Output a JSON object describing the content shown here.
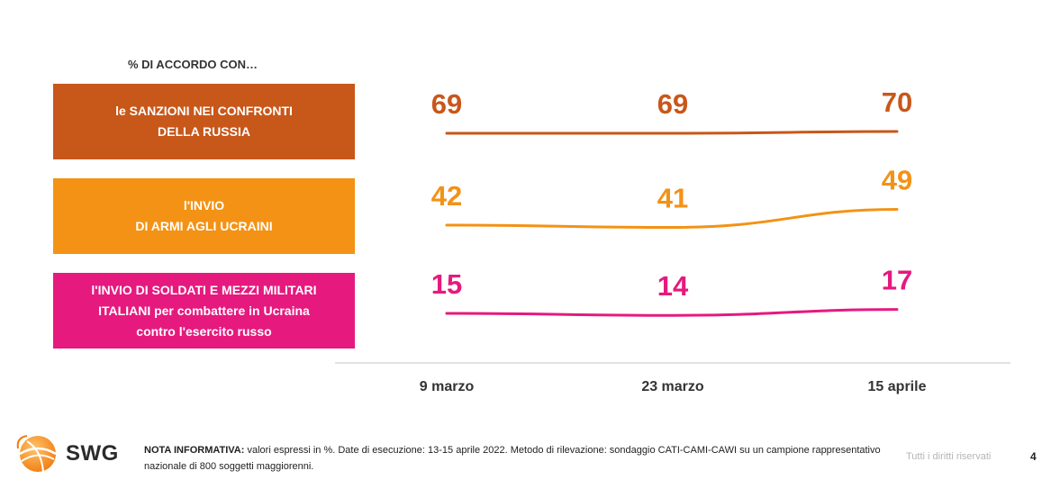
{
  "heading": "% DI ACCORDO CON…",
  "labels": [
    "le SANZIONI NEI CONFRONTI\nDELLA RUSSIA",
    "l'INVIO\nDI ARMI AGLI UCRAINI",
    "l'INVIO DI SOLDATI E MEZZI MILITARI\nITALIANI per combattere in Ucraina\ncontro l'esercito russo"
  ],
  "colors": {
    "series_1": "#c8571a",
    "series_2": "#f39214",
    "series_3": "#e6197e",
    "axis_line": "#d9d9d9"
  },
  "chart_data": {
    "type": "line",
    "x": [
      "9 marzo",
      "23 marzo",
      "15 aprile"
    ],
    "series": [
      {
        "name": "le SANZIONI NEI CONFRONTI DELLA RUSSIA",
        "values": [
          69,
          69,
          70
        ]
      },
      {
        "name": "l'INVIO DI ARMI AGLI UCRAINI",
        "values": [
          42,
          41,
          49
        ]
      },
      {
        "name": "l'INVIO DI SOLDATI E MEZZI MILITARI ITALIANI per combattere in Ucraina contro l'esercito russo",
        "values": [
          15,
          14,
          17
        ]
      }
    ],
    "data_labels": true,
    "grid": false,
    "legend": "left"
  },
  "footer": {
    "logo_text": "SWG",
    "note_label": "NOTA INFORMATIVA:",
    "note_text": " valori espressi in %. Date di esecuzione: 13-15 aprile 2022. Metodo di rilevazione: sondaggio CATI-CAMI-CAWI su un campione rappresentativo nazionale di 800 soggetti maggiorenni.",
    "rights": "Tutti i diritti riservati",
    "page": "4"
  }
}
